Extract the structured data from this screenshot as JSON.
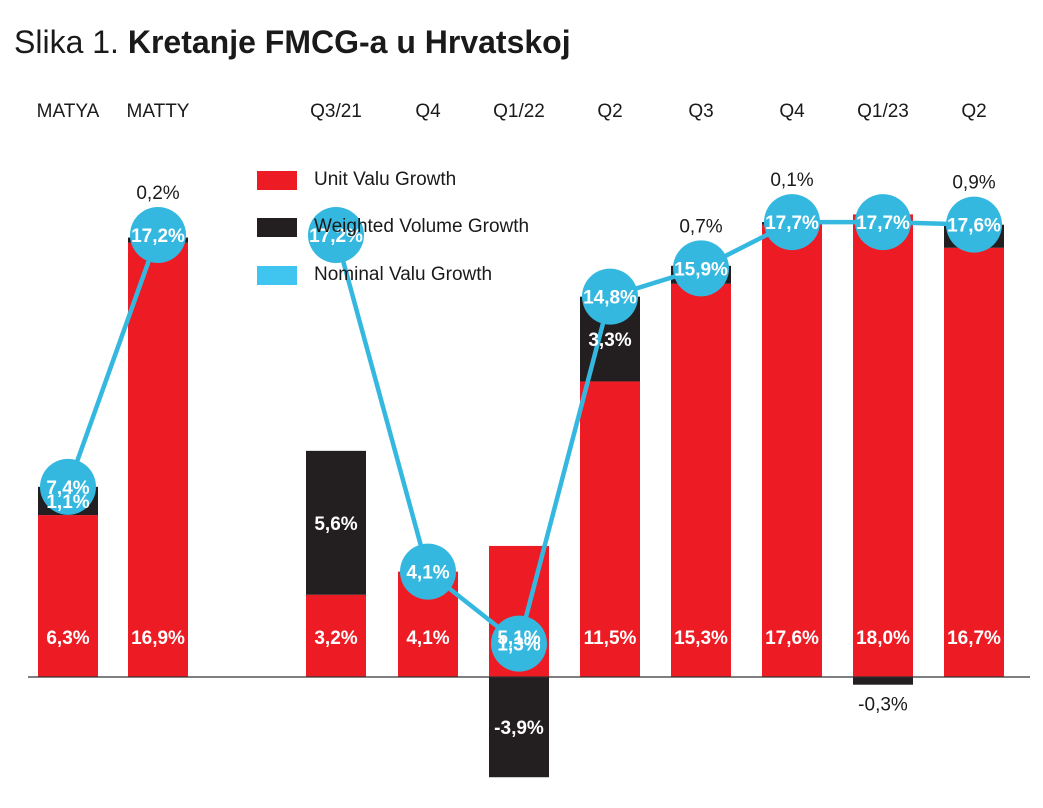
{
  "title": {
    "prefix": "Slika 1.",
    "main": "Kretanje FMCG-a u Hrvatskoj"
  },
  "colors": {
    "unit_value": "#ed1c24",
    "weighted_volume": "#231f20",
    "nominal": "#35b8e0",
    "legend_nominal": "#40c4f0"
  },
  "chart_data": {
    "type": "bar",
    "title": "Kretanje FMCG-a u Hrvatskoj",
    "stacked": true,
    "categories": [
      "MATYA",
      "MATTY",
      "Q3/21",
      "Q4",
      "Q1/22",
      "Q2",
      "Q3",
      "Q4",
      "Q1/23",
      "Q2"
    ],
    "series": [
      {
        "name": "Unit Valu Growth",
        "kind": "bar",
        "values": [
          6.3,
          16.9,
          3.2,
          4.1,
          5.1,
          11.5,
          15.3,
          17.6,
          18.0,
          16.7
        ],
        "labels": [
          "6,3%",
          "16,9%",
          "3,2%",
          "4,1%",
          "5,1%",
          "11,5%",
          "15,3%",
          "17,6%",
          "18,0%",
          "16,7%"
        ]
      },
      {
        "name": "Weighted Volume Growth",
        "kind": "bar",
        "values": [
          1.1,
          0.2,
          5.6,
          0,
          -3.9,
          3.3,
          0.7,
          0.1,
          -0.3,
          0.9
        ],
        "labels": [
          "1,1%",
          "0,2%",
          "5,6%",
          "",
          "-3,9%",
          "3,3%",
          "0,7%",
          "0,1%",
          "-0,3%",
          "0,9%"
        ]
      },
      {
        "name": "Nominal Valu Growth",
        "kind": "line",
        "values": [
          7.4,
          17.2,
          17.2,
          4.1,
          1.3,
          14.8,
          15.9,
          17.7,
          17.7,
          17.6
        ],
        "labels": [
          "7,4%",
          "17,2%",
          "17,2%",
          "4,1%",
          "1,3%",
          "14,8%",
          "15,9%",
          "17,7%",
          "17,7%",
          "17,6%"
        ]
      }
    ],
    "line_segments": [
      [
        0,
        1
      ],
      [
        2,
        3,
        4,
        5,
        6,
        7,
        8,
        9
      ]
    ],
    "legend": "top-left",
    "grid": false
  }
}
